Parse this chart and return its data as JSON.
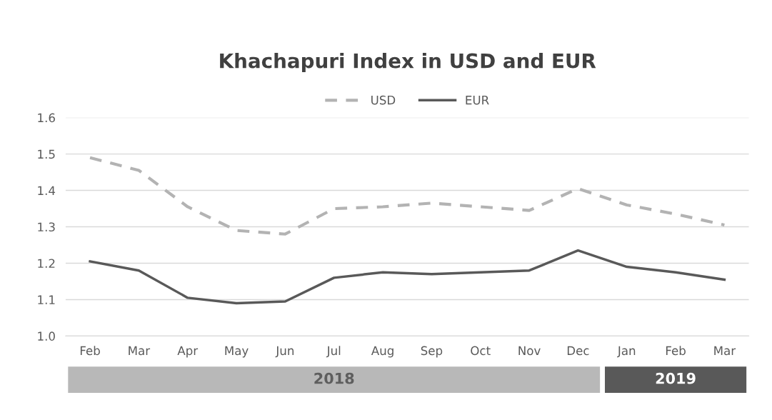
{
  "chart_data": {
    "type": "line",
    "title": "Khachapuri Index in USD and EUR",
    "categories": [
      "Feb",
      "Mar",
      "Apr",
      "May",
      "Jun",
      "Jul",
      "Aug",
      "Sep",
      "Oct",
      "Nov",
      "Dec",
      "Jan",
      "Feb",
      "Mar"
    ],
    "series": [
      {
        "name": "USD",
        "color": "#b3b3b3",
        "line_style": "dashed",
        "values": [
          1.49,
          1.455,
          1.355,
          1.29,
          1.28,
          1.35,
          1.355,
          1.365,
          1.355,
          1.345,
          1.405,
          1.36,
          1.335,
          1.305
        ]
      },
      {
        "name": "EUR",
        "color": "#595959",
        "line_style": "solid",
        "values": [
          1.205,
          1.18,
          1.105,
          1.09,
          1.095,
          1.16,
          1.175,
          1.17,
          1.175,
          1.18,
          1.235,
          1.19,
          1.175,
          1.155
        ]
      }
    ],
    "ylim": [
      1.0,
      1.6
    ],
    "yticks": [
      {
        "value": 1.0,
        "label": "1.0"
      },
      1.1,
      1.2,
      1.3,
      1.4,
      1.5,
      1.6
    ],
    "grid": "y",
    "legend": "top",
    "marker": "none",
    "annotations": [
      "2018",
      "2019"
    ]
  }
}
